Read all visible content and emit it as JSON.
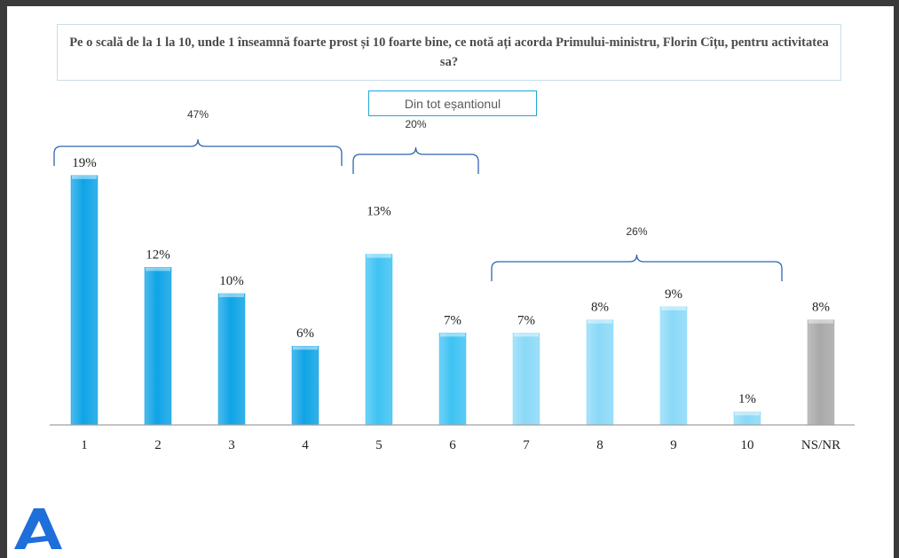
{
  "question": "Pe o scală de la 1 la 10, unde 1 înseamnă foarte prost și 10 foarte bine, ce notă ați acorda Primului-ministru, Florin Cîțu, pentru activitatea sa?",
  "sample_label": "Din tot eșantionul",
  "colors": {
    "dark_blue": "#0fa4e6",
    "mid_blue": "#3ec3f3",
    "light_blue": "#8ad9f8",
    "gray": "#a9a9a9",
    "bracket": "#2e63b5",
    "logo": "#1e6fd9"
  },
  "chart_data": {
    "type": "bar",
    "categories": [
      "1",
      "2",
      "3",
      "4",
      "5",
      "6",
      "7",
      "8",
      "9",
      "10",
      "NS/NR"
    ],
    "values": [
      19,
      12,
      10,
      6,
      13,
      7,
      7,
      8,
      9,
      1,
      8
    ],
    "labels": [
      "19%",
      "12%",
      "10%",
      "6%",
      "13%",
      "7%",
      "7%",
      "8%",
      "9%",
      "1%",
      "8%"
    ],
    "bar_colors": [
      "dark_blue",
      "dark_blue",
      "dark_blue",
      "dark_blue",
      "mid_blue",
      "mid_blue",
      "light_blue",
      "light_blue",
      "light_blue",
      "light_blue",
      "gray"
    ],
    "groups": [
      {
        "label": "47%",
        "from": 0,
        "to": 3
      },
      {
        "label": "20%",
        "from": 4,
        "to": 5
      },
      {
        "label": "26%",
        "from": 6,
        "to": 9
      }
    ],
    "title": "",
    "xlabel": "",
    "ylabel": "",
    "ylim": [
      0,
      20
    ],
    "grid": false,
    "legend": "none"
  }
}
